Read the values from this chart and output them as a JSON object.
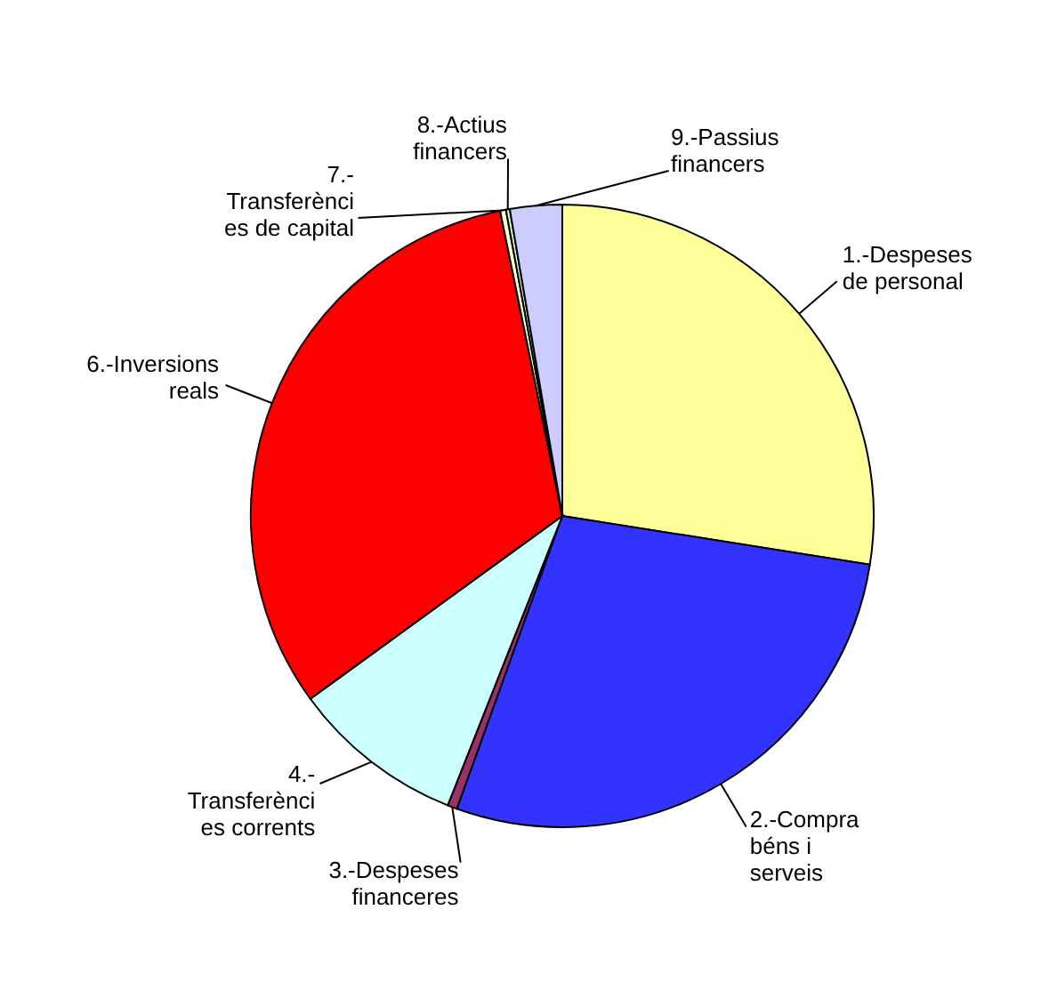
{
  "chart_data": {
    "type": "pie",
    "categories": [
      "1.-Despeses de personal",
      "2.-Compra béns i serveis",
      "3.-Despeses financeres",
      "4.- Transferènci es corrents",
      "6.-Inversions reals",
      "7.- Transferènci es de capital",
      "8.-Actius financers",
      "9.-Passius financers"
    ],
    "values": [
      27.5,
      28,
      0.5,
      9,
      31.8,
      0.3,
      0.2,
      2.7
    ],
    "colors": [
      "#ffff99",
      "#3333ff",
      "#993366",
      "#ccffff",
      "#ff0000",
      "#ffffcc",
      "#ccffcc",
      "#ccccff"
    ]
  }
}
